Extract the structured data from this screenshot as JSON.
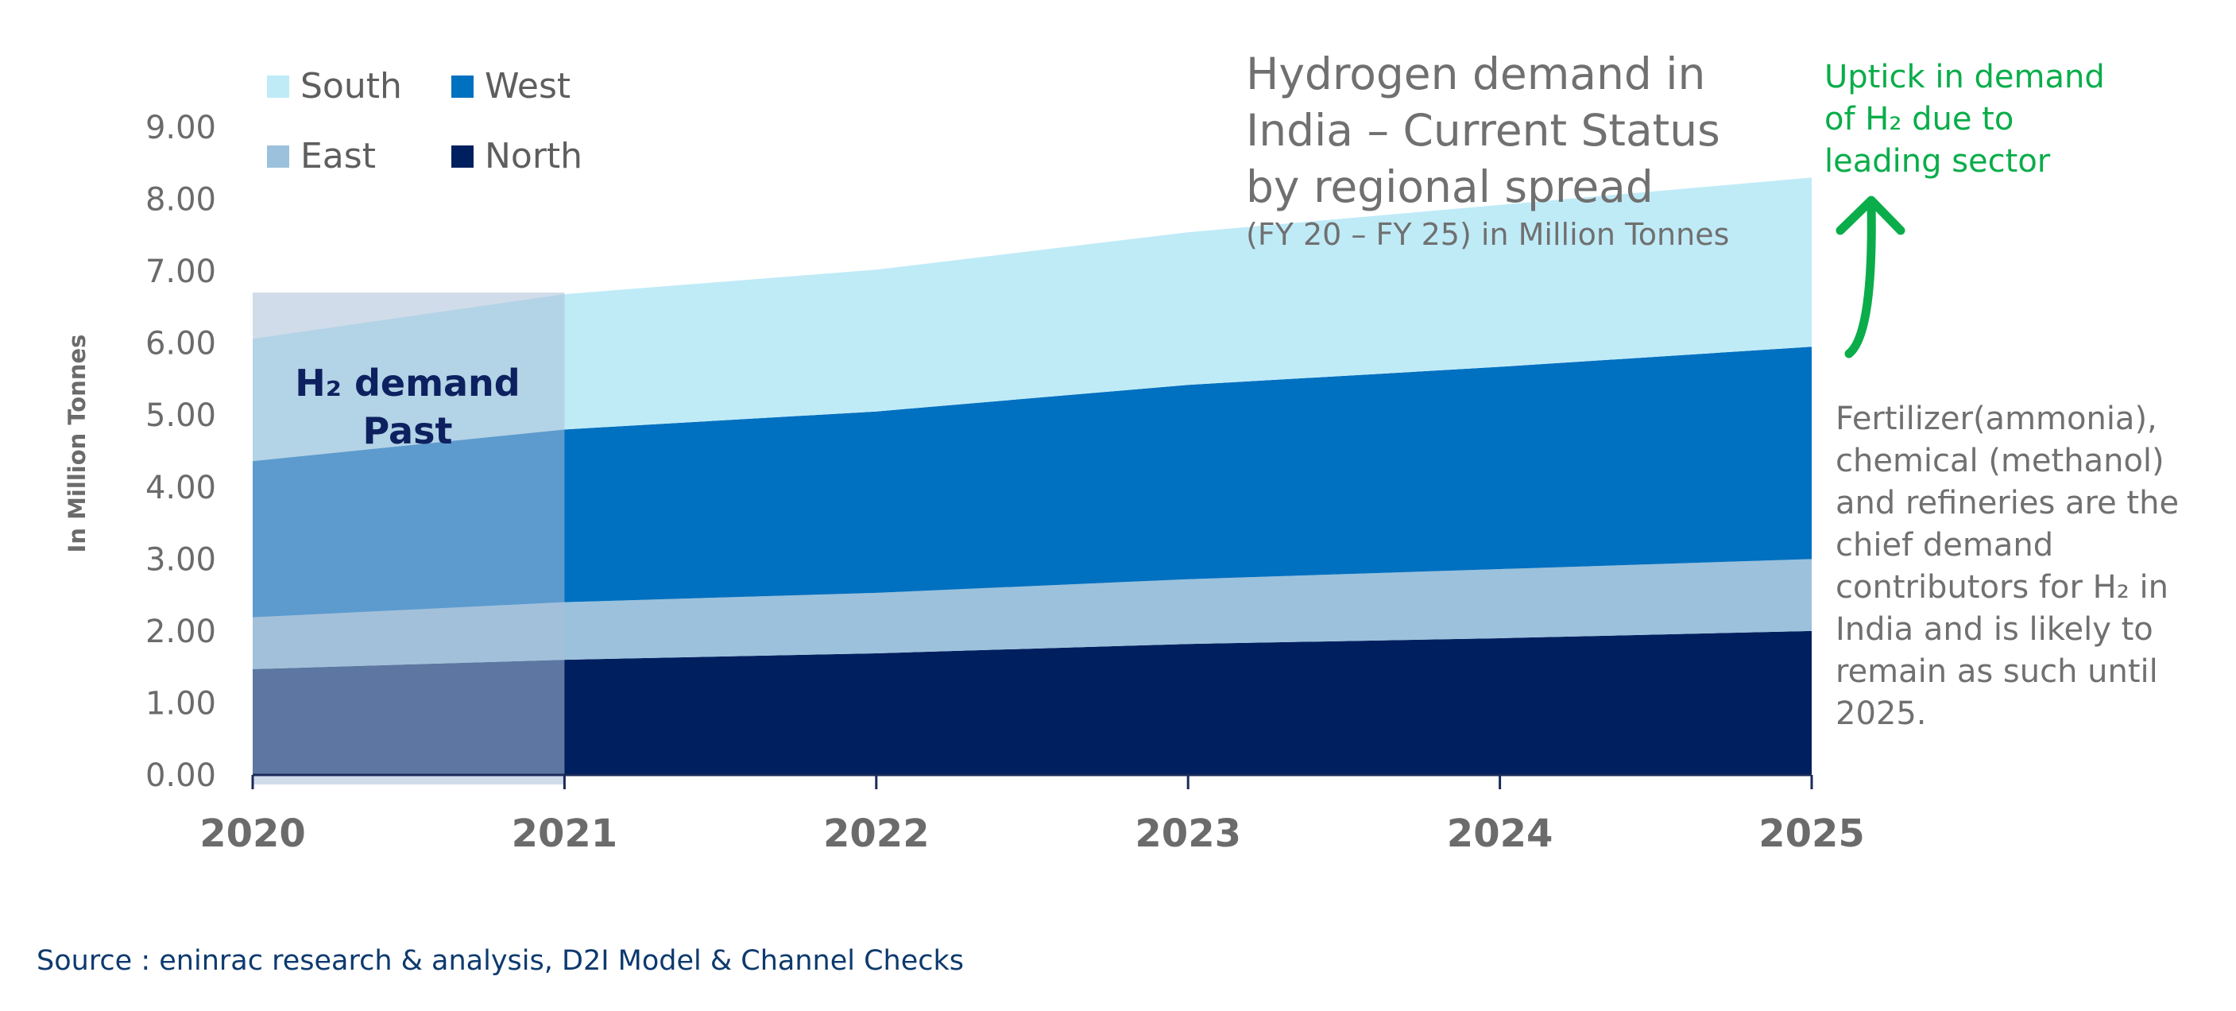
{
  "chart_data": {
    "type": "area",
    "stacked": true,
    "title": "Hydrogen demand in India – Current Status by regional spread",
    "title_lines": [
      "Hydrogen demand in",
      "India – Current Status",
      "by regional spread"
    ],
    "subtitle": "(FY 20 – FY 25) in Million Tonnes",
    "ylabel": "In Million Tonnes",
    "xlabel": "",
    "x": [
      "2020",
      "2021",
      "2022",
      "2023",
      "2024",
      "2025"
    ],
    "ylim": [
      0,
      9
    ],
    "yticks": [
      "0.00",
      "1.00",
      "2.00",
      "3.00",
      "4.00",
      "5.00",
      "6.00",
      "7.00",
      "8.00",
      "9.00"
    ],
    "series": [
      {
        "name": "North",
        "color": "#001f5f",
        "values": [
          1.47,
          1.6,
          1.69,
          1.82,
          1.9,
          2.0
        ]
      },
      {
        "name": "East",
        "color": "#9bc1dc",
        "values": [
          0.72,
          0.8,
          0.84,
          0.9,
          0.96,
          1.0
        ]
      },
      {
        "name": "West",
        "color": "#0070c0",
        "values": [
          2.17,
          2.4,
          2.52,
          2.7,
          2.81,
          2.95
        ]
      },
      {
        "name": "South",
        "color": "#bfebf7",
        "values": [
          1.7,
          1.88,
          1.97,
          2.12,
          2.25,
          2.35
        ]
      }
    ],
    "legend": [
      {
        "name": "South",
        "color": "#bfebf7"
      },
      {
        "name": "West",
        "color": "#0070c0"
      },
      {
        "name": "East",
        "color": "#9bc1dc"
      },
      {
        "name": "North",
        "color": "#001f5f"
      }
    ],
    "legend_position": "top-left",
    "highlight": {
      "from": "2020",
      "to": "2021",
      "label_lines": [
        "H₂ demand",
        "Past"
      ]
    },
    "annotation_uptick_lines": [
      "Uptick in demand",
      "of H₂ due to",
      "leading sector"
    ],
    "annotation_color": "#0aad4a",
    "note_lines": [
      "Fertilizer(ammonia),",
      "chemical (methanol)",
      "and refineries are the",
      "chief demand",
      "contributors for H₂ in",
      "India and is likely to",
      "remain as such until",
      "2025."
    ],
    "source": "Source : eninrac research & analysis, D2I Model & Channel Checks"
  }
}
